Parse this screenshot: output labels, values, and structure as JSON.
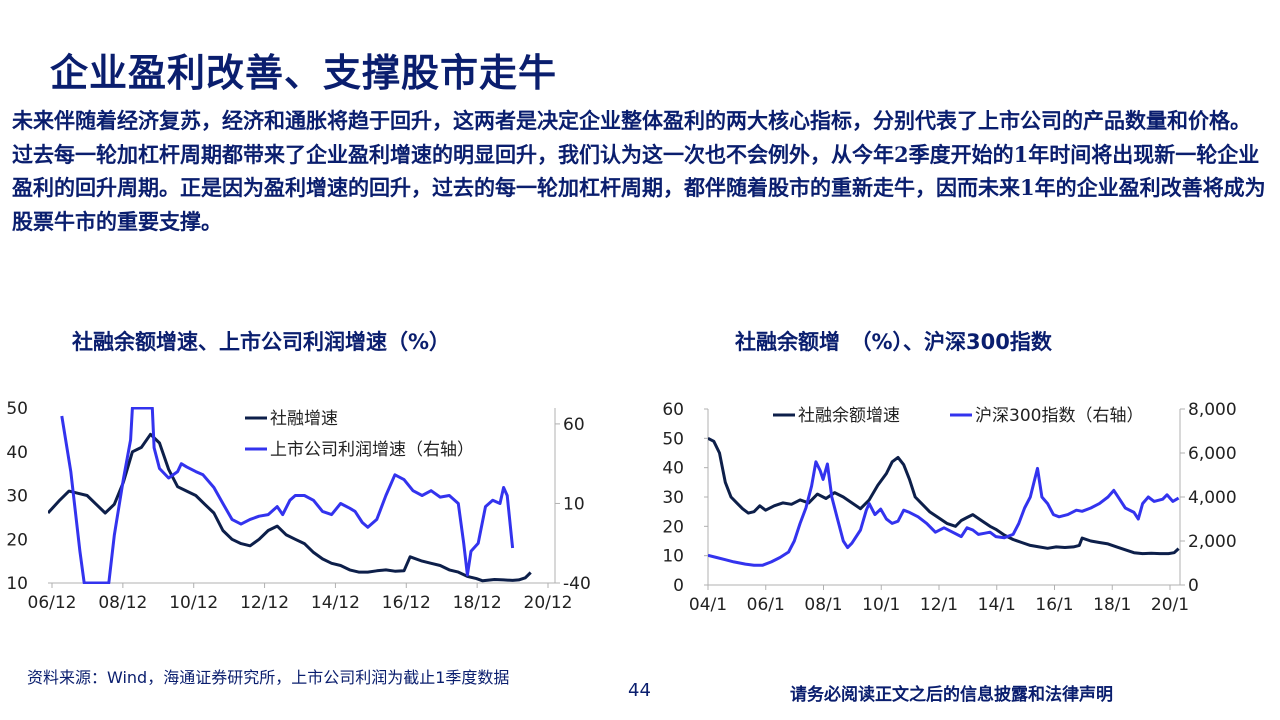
{
  "title": "企业盈利改善、支撑股市走牛",
  "body_text": "未来伴随着经济复苏，经济和通胀将趋于回升，这两者是决定企业整体盈利的两大核心指标，分别代表了上市公司的产品数量和价格。过去每一轮加杠杆周期都带来了企业盈利增速的明显回升，我们认为这一次也不会例外，从今年2季度开始的1年时间将出现新一轮企业盈利的回升周期。正是因为盈利增速的回升，过去的每一轮加杠杆周期，都伴随着股市的重新走牛，因而未来1年的企业盈利改善将成为股票牛市的重要支撑。",
  "footer": {
    "source": "资料来源：Wind，海通证券研究所，上市公司利润为截止1季度数据",
    "page_number": "44",
    "disclaimer": "请务必阅读正文之后的信息披露和法律声明"
  },
  "colors": {
    "navy": "#0a1e6e",
    "dark_series": "#0d1f4a",
    "blue_series": "#3333ee",
    "axis": "#b0b0b0"
  },
  "chart_data": [
    {
      "type": "line",
      "title": "社融余额增速、上市公司利润增速（%）",
      "x_ticks": [
        "06/12",
        "08/12",
        "10/12",
        "12/12",
        "14/12",
        "16/12",
        "18/12",
        "20/12"
      ],
      "x_range": [
        2006.92,
        2020.92
      ],
      "ylim_left": [
        10,
        50
      ],
      "y_ticks_left": [
        "50",
        "40",
        "30",
        "20",
        "10"
      ],
      "ylim_right": [
        -40,
        70
      ],
      "y_ticks_right": [
        "60",
        "10",
        "-40"
      ],
      "legend_position": "top-right",
      "series": [
        {
          "name": "社融增速",
          "axis": "left",
          "color": "#0d1f4a",
          "points": [
            [
              2006.92,
              26
            ],
            [
              2007.25,
              29
            ],
            [
              2007.5,
              31
            ],
            [
              2007.75,
              30.5
            ],
            [
              2008.0,
              30
            ],
            [
              2008.25,
              28
            ],
            [
              2008.5,
              26
            ],
            [
              2008.75,
              28
            ],
            [
              2009.0,
              33
            ],
            [
              2009.25,
              40
            ],
            [
              2009.5,
              41
            ],
            [
              2009.75,
              44
            ],
            [
              2010.0,
              42
            ],
            [
              2010.25,
              36
            ],
            [
              2010.5,
              32
            ],
            [
              2010.75,
              31
            ],
            [
              2011.0,
              30
            ],
            [
              2011.25,
              28
            ],
            [
              2011.5,
              26
            ],
            [
              2011.75,
              22
            ],
            [
              2012.0,
              20
            ],
            [
              2012.25,
              19
            ],
            [
              2012.5,
              18.5
            ],
            [
              2012.75,
              20
            ],
            [
              2013.0,
              22
            ],
            [
              2013.25,
              23
            ],
            [
              2013.5,
              21
            ],
            [
              2013.75,
              20
            ],
            [
              2014.0,
              19
            ],
            [
              2014.25,
              17
            ],
            [
              2014.5,
              15.5
            ],
            [
              2014.75,
              14.5
            ],
            [
              2015.0,
              14
            ],
            [
              2015.25,
              13
            ],
            [
              2015.5,
              12.5
            ],
            [
              2015.75,
              12.5
            ],
            [
              2016.0,
              12.8
            ],
            [
              2016.25,
              13
            ],
            [
              2016.5,
              12.7
            ],
            [
              2016.75,
              12.8
            ],
            [
              2016.92,
              16
            ],
            [
              2017.25,
              15
            ],
            [
              2017.5,
              14.5
            ],
            [
              2017.75,
              14
            ],
            [
              2018.0,
              13
            ],
            [
              2018.25,
              12.5
            ],
            [
              2018.5,
              11.5
            ],
            [
              2018.75,
              11
            ],
            [
              2018.92,
              10.5
            ],
            [
              2019.25,
              10.8
            ],
            [
              2019.5,
              10.7
            ],
            [
              2019.75,
              10.6
            ],
            [
              2019.92,
              10.7
            ],
            [
              2020.1,
              11.2
            ],
            [
              2020.25,
              12.4
            ]
          ]
        },
        {
          "name": "上市公司利润增速（右轴）",
          "axis": "right",
          "color": "#3333ee",
          "points": [
            [
              2007.3,
              65
            ],
            [
              2007.55,
              30
            ],
            [
              2007.8,
              -20
            ],
            [
              2007.92,
              -40
            ],
            [
              2008.6,
              -40
            ],
            [
              2008.75,
              -10
            ],
            [
              2009.0,
              25
            ],
            [
              2009.2,
              50
            ],
            [
              2009.25,
              70
            ],
            [
              2009.8,
              70
            ],
            [
              2009.85,
              45
            ],
            [
              2010.0,
              32
            ],
            [
              2010.25,
              26
            ],
            [
              2010.5,
              30
            ],
            [
              2010.6,
              35
            ],
            [
              2010.75,
              33
            ],
            [
              2011.0,
              30
            ],
            [
              2011.2,
              28
            ],
            [
              2011.5,
              20
            ],
            [
              2011.75,
              10
            ],
            [
              2012.0,
              0
            ],
            [
              2012.25,
              -3
            ],
            [
              2012.5,
              0
            ],
            [
              2012.75,
              2
            ],
            [
              2013.0,
              3
            ],
            [
              2013.25,
              8
            ],
            [
              2013.4,
              3
            ],
            [
              2013.6,
              12
            ],
            [
              2013.75,
              15
            ],
            [
              2014.0,
              15
            ],
            [
              2014.25,
              12
            ],
            [
              2014.5,
              5
            ],
            [
              2014.75,
              3
            ],
            [
              2015.0,
              10
            ],
            [
              2015.25,
              7
            ],
            [
              2015.4,
              5
            ],
            [
              2015.6,
              -2
            ],
            [
              2015.75,
              -5
            ],
            [
              2016.0,
              0
            ],
            [
              2016.25,
              15
            ],
            [
              2016.5,
              28
            ],
            [
              2016.75,
              25
            ],
            [
              2017.0,
              18
            ],
            [
              2017.25,
              15
            ],
            [
              2017.5,
              18
            ],
            [
              2017.75,
              14
            ],
            [
              2018.0,
              15
            ],
            [
              2018.25,
              10
            ],
            [
              2018.4,
              -15
            ],
            [
              2018.5,
              -35
            ],
            [
              2018.6,
              -20
            ],
            [
              2018.8,
              -15
            ],
            [
              2019.0,
              8
            ],
            [
              2019.2,
              12
            ],
            [
              2019.4,
              10
            ],
            [
              2019.5,
              20
            ],
            [
              2019.6,
              15
            ],
            [
              2019.75,
              -18
            ]
          ]
        }
      ]
    },
    {
      "type": "line",
      "title": "社融余额增　（%）、沪深300指数",
      "x_ticks": [
        "04/1",
        "06/1",
        "08/1",
        "10/1",
        "12/1",
        "14/1",
        "16/1",
        "18/1",
        "20/1"
      ],
      "x_range": [
        2004.0,
        2020.4
      ],
      "ylim_left": [
        0,
        60
      ],
      "y_ticks_left": [
        "60",
        "50",
        "40",
        "30",
        "20",
        "10",
        "0"
      ],
      "ylim_right": [
        0,
        8000
      ],
      "y_ticks_right": [
        "8,000",
        "6,000",
        "4,000",
        "2,000",
        "0"
      ],
      "legend_position": "top",
      "series": [
        {
          "name": "社融余额增速",
          "axis": "left",
          "color": "#0d1f4a",
          "points": [
            [
              2004.0,
              50
            ],
            [
              2004.2,
              49
            ],
            [
              2004.4,
              45
            ],
            [
              2004.6,
              35
            ],
            [
              2004.8,
              30
            ],
            [
              2005.0,
              28
            ],
            [
              2005.2,
              26
            ],
            [
              2005.4,
              24.5
            ],
            [
              2005.6,
              25
            ],
            [
              2005.8,
              27
            ],
            [
              2006.0,
              25.5
            ],
            [
              2006.3,
              27
            ],
            [
              2006.6,
              28
            ],
            [
              2006.9,
              27.5
            ],
            [
              2007.2,
              29
            ],
            [
              2007.5,
              28
            ],
            [
              2007.8,
              31
            ],
            [
              2008.1,
              29.5
            ],
            [
              2008.4,
              31.5
            ],
            [
              2008.7,
              30
            ],
            [
              2009.0,
              28
            ],
            [
              2009.3,
              26
            ],
            [
              2009.6,
              29
            ],
            [
              2009.9,
              34
            ],
            [
              2010.2,
              38
            ],
            [
              2010.4,
              42
            ],
            [
              2010.6,
              43.5
            ],
            [
              2010.8,
              41
            ],
            [
              2011.0,
              36
            ],
            [
              2011.2,
              30
            ],
            [
              2011.4,
              28
            ],
            [
              2011.7,
              25
            ],
            [
              2012.0,
              23
            ],
            [
              2012.3,
              21
            ],
            [
              2012.6,
              20
            ],
            [
              2012.8,
              22
            ],
            [
              2013.0,
              23
            ],
            [
              2013.2,
              24
            ],
            [
              2013.5,
              22
            ],
            [
              2013.8,
              20
            ],
            [
              2014.0,
              19
            ],
            [
              2014.3,
              17
            ],
            [
              2014.6,
              15.5
            ],
            [
              2014.9,
              14.5
            ],
            [
              2015.2,
              13.5
            ],
            [
              2015.5,
              13
            ],
            [
              2015.8,
              12.5
            ],
            [
              2016.1,
              13
            ],
            [
              2016.4,
              12.8
            ],
            [
              2016.7,
              13
            ],
            [
              2016.9,
              13.5
            ],
            [
              2017.0,
              16
            ],
            [
              2017.3,
              15
            ],
            [
              2017.6,
              14.5
            ],
            [
              2017.9,
              14
            ],
            [
              2018.2,
              13
            ],
            [
              2018.5,
              12
            ],
            [
              2018.8,
              11
            ],
            [
              2019.1,
              10.7
            ],
            [
              2019.4,
              10.8
            ],
            [
              2019.7,
              10.7
            ],
            [
              2020.0,
              10.7
            ],
            [
              2020.2,
              11
            ],
            [
              2020.35,
              12.4
            ]
          ]
        },
        {
          "name": "沪深300指数（右轴）",
          "axis": "right",
          "color": "#3333ee",
          "points": [
            [
              2004.0,
              1350
            ],
            [
              2004.3,
              1250
            ],
            [
              2004.6,
              1150
            ],
            [
              2004.9,
              1050
            ],
            [
              2005.3,
              950
            ],
            [
              2005.6,
              900
            ],
            [
              2005.9,
              900
            ],
            [
              2006.2,
              1050
            ],
            [
              2006.5,
              1250
            ],
            [
              2006.8,
              1500
            ],
            [
              2007.0,
              2000
            ],
            [
              2007.2,
              2800
            ],
            [
              2007.4,
              3500
            ],
            [
              2007.6,
              4500
            ],
            [
              2007.75,
              5600
            ],
            [
              2007.9,
              5200
            ],
            [
              2008.0,
              4800
            ],
            [
              2008.15,
              5500
            ],
            [
              2008.3,
              4000
            ],
            [
              2008.5,
              3000
            ],
            [
              2008.7,
              2000
            ],
            [
              2008.85,
              1700
            ],
            [
              2009.0,
              1900
            ],
            [
              2009.3,
              2500
            ],
            [
              2009.5,
              3400
            ],
            [
              2009.6,
              3700
            ],
            [
              2009.8,
              3200
            ],
            [
              2010.0,
              3450
            ],
            [
              2010.2,
              3000
            ],
            [
              2010.4,
              2800
            ],
            [
              2010.6,
              2900
            ],
            [
              2010.8,
              3400
            ],
            [
              2011.0,
              3300
            ],
            [
              2011.3,
              3100
            ],
            [
              2011.6,
              2800
            ],
            [
              2011.9,
              2400
            ],
            [
              2012.2,
              2600
            ],
            [
              2012.5,
              2400
            ],
            [
              2012.8,
              2200
            ],
            [
              2013.0,
              2600
            ],
            [
              2013.2,
              2500
            ],
            [
              2013.4,
              2300
            ],
            [
              2013.6,
              2350
            ],
            [
              2013.8,
              2400
            ],
            [
              2014.0,
              2200
            ],
            [
              2014.3,
              2150
            ],
            [
              2014.6,
              2300
            ],
            [
              2014.8,
              2800
            ],
            [
              2015.0,
              3500
            ],
            [
              2015.2,
              4000
            ],
            [
              2015.35,
              4800
            ],
            [
              2015.45,
              5300
            ],
            [
              2015.6,
              4000
            ],
            [
              2015.8,
              3700
            ],
            [
              2016.0,
              3200
            ],
            [
              2016.2,
              3100
            ],
            [
              2016.5,
              3200
            ],
            [
              2016.8,
              3400
            ],
            [
              2017.0,
              3350
            ],
            [
              2017.3,
              3500
            ],
            [
              2017.6,
              3700
            ],
            [
              2017.9,
              4000
            ],
            [
              2018.1,
              4300
            ],
            [
              2018.3,
              3900
            ],
            [
              2018.5,
              3500
            ],
            [
              2018.8,
              3300
            ],
            [
              2018.95,
              3000
            ],
            [
              2019.1,
              3700
            ],
            [
              2019.3,
              4000
            ],
            [
              2019.5,
              3800
            ],
            [
              2019.8,
              3900
            ],
            [
              2019.95,
              4100
            ],
            [
              2020.15,
              3800
            ],
            [
              2020.35,
              3950
            ]
          ]
        }
      ]
    }
  ]
}
